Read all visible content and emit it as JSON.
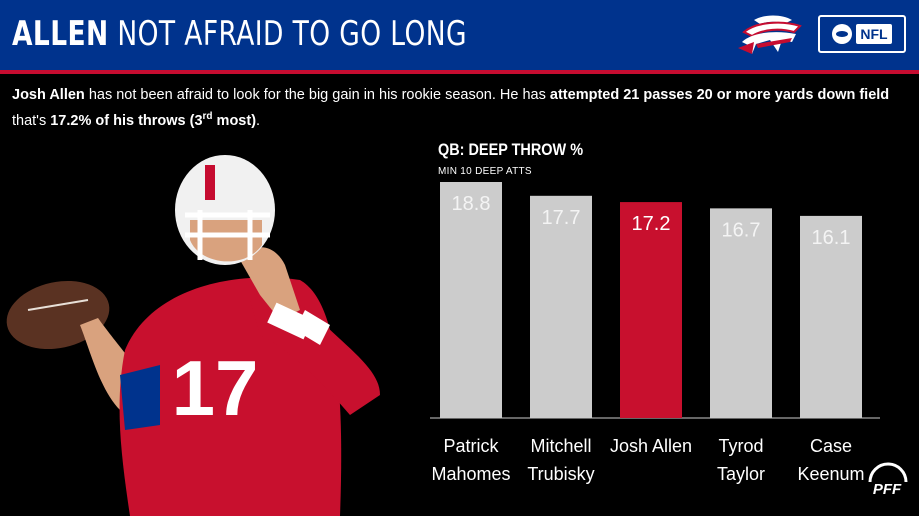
{
  "header": {
    "title_bold": "ALLEN",
    "title_rest": "NOT AFRAID TO GO LONG",
    "nfl_label": "NFL"
  },
  "subtitle": {
    "part1_bold": "Josh Allen",
    "part2": " has not been afraid to look for the big gain in his rookie season. He has ",
    "part3_bold": "attempted 21 passes 20 or more yards down field",
    "part4": " that's ",
    "part5_bold": "17.2% of his throws (3",
    "part5_sup": "rd",
    "part6_bold": " most)",
    "part7": "."
  },
  "player_jersey_number": "17",
  "pff_label": "PFF",
  "colors": {
    "header_bg": "#00338D",
    "accent_red": "#C60C30",
    "bar_gray": "#CCCCCC",
    "bar_highlight": "#C8102E"
  },
  "chart_data": {
    "type": "bar",
    "title": "QB: DEEP THROW %",
    "subtitle": "MIN 10 DEEP ATTS",
    "categories": [
      [
        "Patrick",
        "Mahomes"
      ],
      [
        "Mitchell",
        "Trubisky"
      ],
      [
        "Josh Allen"
      ],
      [
        "Tyrod",
        "Taylor"
      ],
      [
        "Case",
        "Keenum"
      ]
    ],
    "values": [
      18.8,
      17.7,
      17.2,
      16.7,
      16.1
    ],
    "value_labels": [
      "18.8",
      "17.7",
      "17.2",
      "16.7",
      "16.1"
    ],
    "highlight_index": 2,
    "ylim": [
      0,
      18.8
    ],
    "grid": false,
    "legend": "none"
  }
}
